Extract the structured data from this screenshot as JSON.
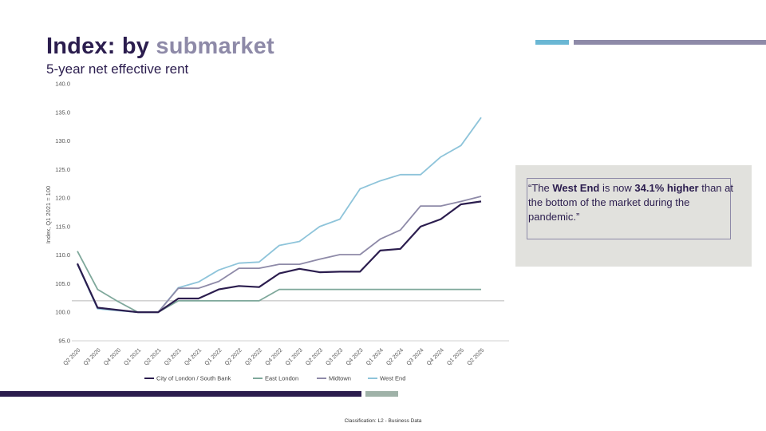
{
  "header": {
    "title_part1": "Index: by ",
    "title_part2": "submarket",
    "subtitle": "5-year net effective rent"
  },
  "quote": {
    "open": "“The ",
    "bold1": "West End",
    "mid": " is now ",
    "bold2": "34.1% higher",
    "end": " than at the bottom of the market during the pandemic.”"
  },
  "footer": {
    "classification": "Classification: L2 - Business Data"
  },
  "colors": {
    "city": "#2b1d4e",
    "east": "#7fa89b",
    "midtown": "#8e8aa8",
    "west": "#8ec4da",
    "bar_top_blue": "#6ab7d4",
    "bar_top_gray": "#8e8aa8",
    "bar_bottom_dark": "#2b1d4e",
    "bar_bottom_green": "#9fb2a8"
  },
  "chart_data": {
    "type": "line",
    "title": "",
    "xlabel": "",
    "ylabel": "Index, Q1 2021 = 100",
    "ylim": [
      95,
      140
    ],
    "yticks": [
      "95.0",
      "100.0",
      "105.0",
      "110.0",
      "115.0",
      "120.0",
      "125.0",
      "130.0",
      "135.0",
      "140.0"
    ],
    "reference_line": 102,
    "categories": [
      "Q2 2020",
      "Q3 2020",
      "Q4 2020",
      "Q1 2021",
      "Q2 2021",
      "Q3 2021",
      "Q4 2021",
      "Q1 2022",
      "Q2 2022",
      "Q3 2022",
      "Q4 2022",
      "Q1 2023",
      "Q2 2023",
      "Q3 2023",
      "Q4 2023",
      "Q1 2024",
      "Q2 2024",
      "Q3 2024",
      "Q4 2024",
      "Q1 2025",
      "Q2 2025"
    ],
    "series": [
      {
        "name": "City of London / South Bank",
        "color_key": "city",
        "values": [
          108.5,
          100.8,
          100.4,
          100.0,
          100.0,
          102.4,
          102.4,
          104.0,
          104.6,
          104.4,
          106.8,
          107.6,
          107.0,
          107.1,
          107.1,
          110.8,
          111.1,
          115.0,
          116.3,
          118.9,
          119.4
        ]
      },
      {
        "name": "East London",
        "color_key": "east",
        "values": [
          110.7,
          104.0,
          101.9,
          100.0,
          100.0,
          102.0,
          102.0,
          102.0,
          102.0,
          102.0,
          104.0,
          104.0,
          104.0,
          104.0,
          104.0,
          104.0,
          104.0,
          104.0,
          104.0,
          104.0,
          104.0
        ]
      },
      {
        "name": "Midtown",
        "color_key": "midtown",
        "values": [
          108.6,
          100.8,
          100.4,
          100.0,
          100.0,
          104.2,
          104.2,
          105.4,
          107.7,
          107.7,
          108.4,
          108.4,
          109.3,
          110.1,
          110.1,
          112.8,
          114.4,
          118.6,
          118.6,
          119.4,
          120.3
        ]
      },
      {
        "name": "West End",
        "color_key": "west",
        "values": [
          108.4,
          100.6,
          100.3,
          100.0,
          100.0,
          104.3,
          105.3,
          107.4,
          108.6,
          108.8,
          111.7,
          112.4,
          115.0,
          116.3,
          121.6,
          123.0,
          124.1,
          124.1,
          127.2,
          129.2,
          134.1
        ]
      }
    ],
    "legend_position": "bottom"
  }
}
